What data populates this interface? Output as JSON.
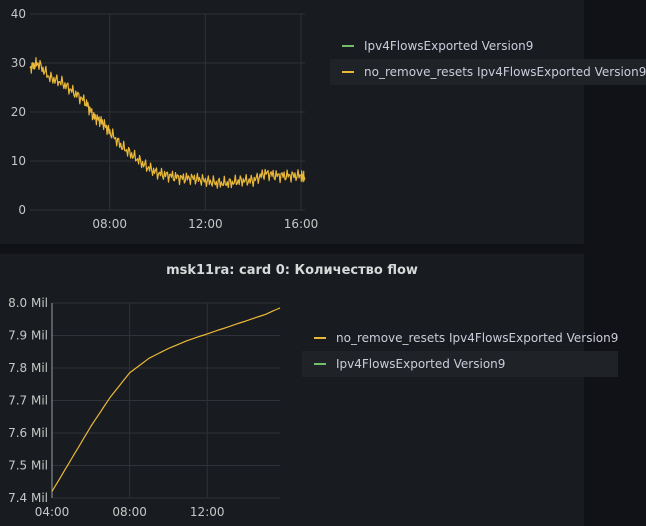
{
  "colors": {
    "series_yellow": "#eab839",
    "series_green": "#73bf69",
    "grid": "#2f3238",
    "tick": "#c7c7c7"
  },
  "top_panel": {
    "legend": [
      {
        "label": "Ipv4FlowsExported Version9",
        "color": "#73bf69"
      },
      {
        "label": "no_remove_resets Ipv4FlowsExported Version9",
        "color": "#eab839"
      }
    ]
  },
  "bottom_panel": {
    "title": "msk11ra: card 0: Количество flow",
    "legend": [
      {
        "label": "no_remove_resets Ipv4FlowsExported Version9",
        "color": "#eab839"
      },
      {
        "label": "Ipv4FlowsExported Version9",
        "color": "#73bf69"
      }
    ]
  },
  "chart_data": [
    {
      "type": "line",
      "x_type": "time",
      "x_ticks": [
        "08:00",
        "12:00",
        "16:00"
      ],
      "y_ticks": [
        "0",
        "10",
        "20",
        "30",
        "40"
      ],
      "xlim": [
        "04:40",
        "16:10"
      ],
      "ylim": [
        0,
        40
      ],
      "grid": true,
      "legend_position": "right",
      "series": [
        {
          "name": "no_remove_resets Ipv4FlowsExported Version9",
          "color": "#eab839",
          "x": [
            "04:40",
            "05:00",
            "05:30",
            "06:00",
            "06:30",
            "07:00",
            "07:20",
            "07:40",
            "08:00",
            "08:30",
            "09:00",
            "09:30",
            "10:00",
            "10:30",
            "11:00",
            "11:30",
            "12:00",
            "12:30",
            "13:00",
            "13:30",
            "14:00",
            "14:30",
            "15:00",
            "15:30",
            "16:00",
            "16:10"
          ],
          "y": [
            29,
            30,
            27,
            26,
            24,
            22,
            19,
            18,
            16,
            13,
            11,
            9,
            7.5,
            7,
            6.5,
            6.5,
            6,
            5.5,
            5.5,
            6,
            6,
            7.5,
            7,
            7,
            7,
            6.5
          ]
        }
      ]
    },
    {
      "type": "line",
      "x_type": "time",
      "title": "msk11ra: card 0: Количество flow",
      "x_ticks": [
        "04:00",
        "08:00",
        "12:00"
      ],
      "y_ticks": [
        "7.4 Mil",
        "7.5 Mil",
        "7.6 Mil",
        "7.7 Mil",
        "7.8 Mil",
        "7.9 Mil",
        "8.0 Mil"
      ],
      "xlim": [
        "04:00",
        "15:45"
      ],
      "ylim": [
        7.4,
        8.0
      ],
      "y_unit": "Mil",
      "grid": true,
      "legend_position": "right",
      "series": [
        {
          "name": "no_remove_resets Ipv4FlowsExported Version9",
          "color": "#eab839",
          "x": [
            "04:00",
            "05:00",
            "06:00",
            "07:00",
            "08:00",
            "09:00",
            "10:00",
            "11:00",
            "12:00",
            "13:00",
            "14:00",
            "15:00",
            "15:45"
          ],
          "y": [
            7.42,
            7.52,
            7.62,
            7.71,
            7.785,
            7.83,
            7.86,
            7.885,
            7.905,
            7.925,
            7.945,
            7.965,
            7.985
          ]
        }
      ]
    }
  ]
}
